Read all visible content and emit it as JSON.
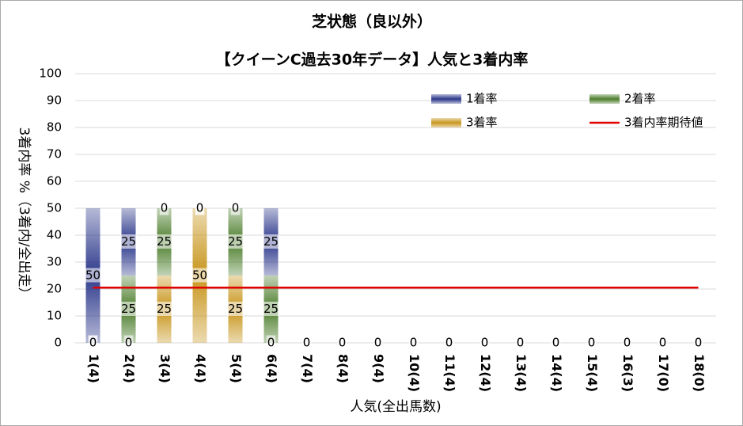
{
  "chart_data": {
    "type": "bar",
    "title": "芝状態（良以外）",
    "subtitle": "【クイーンC過去30年データ】人気と3着内率",
    "x_label": "人気(全出馬数)",
    "y_label": "3着内率 %（3着内/全出走）",
    "categories": [
      "1(4)",
      "2(4)",
      "3(4)",
      "4(4)",
      "5(4)",
      "6(4)",
      "7(4)",
      "8(4)",
      "9(4)",
      "10(4)",
      "11(4)",
      "12(4)",
      "13(4)",
      "14(4)",
      "15(4)",
      "16(3)",
      "17(0)",
      "18(0)"
    ],
    "stacked": true,
    "series": [
      {
        "name": "1着率",
        "color": "#2e3a8c",
        "values": [
          50,
          25,
          0,
          0,
          0,
          25,
          0,
          0,
          0,
          0,
          0,
          0,
          0,
          0,
          0,
          0,
          0,
          0
        ]
      },
      {
        "name": "2着率",
        "color": "#4e7f2e",
        "values": [
          0,
          25,
          25,
          0,
          25,
          25,
          0,
          0,
          0,
          0,
          0,
          0,
          0,
          0,
          0,
          0,
          0,
          0
        ]
      },
      {
        "name": "3着率",
        "color": "#c8961e",
        "values": [
          0,
          0,
          25,
          50,
          25,
          0,
          0,
          0,
          0,
          0,
          0,
          0,
          0,
          0,
          0,
          0,
          0,
          0
        ]
      },
      {
        "name": "3着内率期待値",
        "color": "#e00000",
        "type": "line",
        "values": [
          20.5,
          20.5,
          20.5,
          20.5,
          20.5,
          20.5,
          20.5,
          20.5,
          20.5,
          20.5,
          20.5,
          20.5,
          20.5,
          20.5,
          20.5,
          20.5,
          20.5,
          20.5
        ]
      }
    ],
    "ylim": [
      0,
      100
    ],
    "yticks": [
      0,
      10,
      20,
      30,
      40,
      50,
      60,
      70,
      80,
      90,
      100
    ],
    "grid": true
  }
}
